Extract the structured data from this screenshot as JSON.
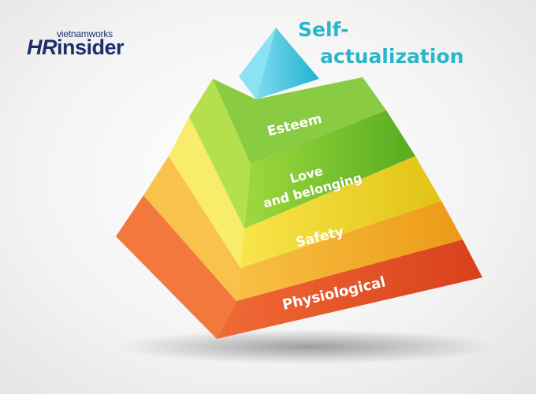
{
  "logo": {
    "brand_top": "vietnamworks",
    "brand_hr": "HR",
    "brand_rest": "insider"
  },
  "apex_label": {
    "line1": "Self-",
    "line2": "actualization"
  },
  "levels": [
    {
      "label": "Esteem",
      "color": "#5fb52a"
    },
    {
      "label_line1": "Love",
      "label_line2": "and belonging",
      "color": "#e9d21c"
    },
    {
      "label": "Safety",
      "color": "#f1a21c"
    },
    {
      "label": "Physiological",
      "color": "#e24f24"
    }
  ],
  "apex_color": "#3ec8e0"
}
